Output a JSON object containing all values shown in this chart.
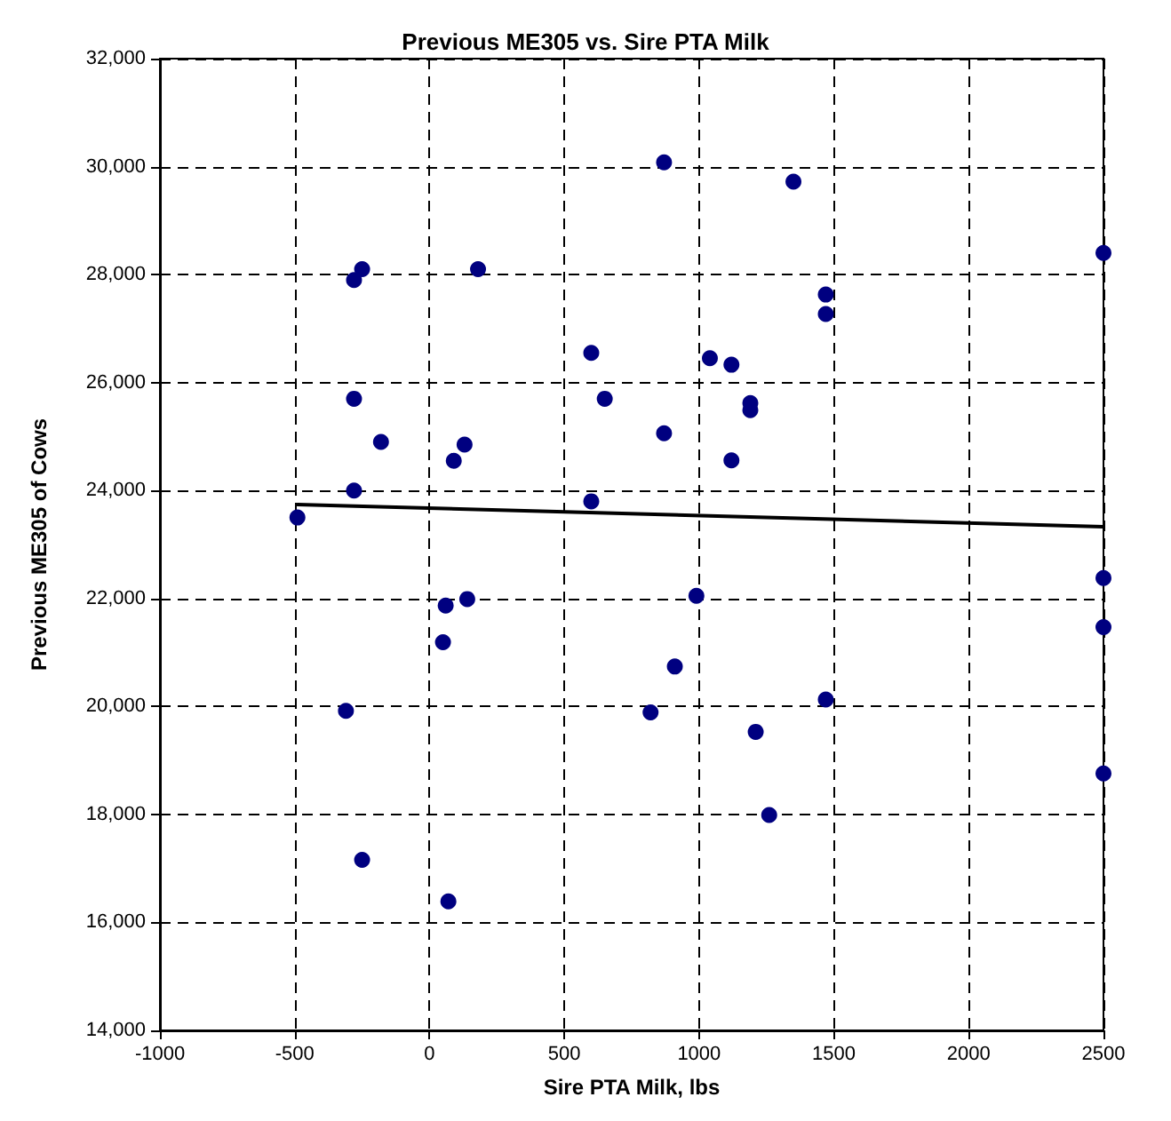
{
  "chart_data": {
    "type": "scatter",
    "title": "Previous ME305 vs. Sire PTA Milk",
    "xlabel": "Sire PTA Milk, lbs",
    "ylabel": "Previous ME305 of Cows",
    "xlim": [
      -1000,
      2500
    ],
    "xticks": [
      -1000,
      -500,
      0,
      500,
      1000,
      1500,
      2000,
      2500
    ],
    "ylim": [
      14000,
      32000
    ],
    "yticks": [
      {
        "value": 14000,
        "label": "14,000"
      },
      {
        "value": 16000,
        "label": "16,000"
      },
      {
        "value": 18000,
        "label": "18,000"
      },
      {
        "value": 20000,
        "label": "20,000"
      },
      {
        "value": 22000,
        "label": "22,000"
      },
      {
        "value": 24000,
        "label": "24,000"
      },
      {
        "value": 26000,
        "label": "26,000"
      },
      {
        "value": 28000,
        "label": "28,000"
      },
      {
        "value": 30000,
        "label": "30,000"
      },
      {
        "value": 32000,
        "label": "32,000"
      }
    ],
    "grid": true,
    "marker": "circle",
    "series": [
      {
        "color": "#000080",
        "x": [
          -490,
          -280,
          -250,
          180,
          600,
          -280,
          -180,
          130,
          90,
          -280,
          600,
          650,
          870,
          1350,
          2500,
          1470,
          1470,
          1040,
          1120,
          1190,
          1190,
          870,
          1120,
          60,
          140,
          50,
          -310,
          -250,
          70,
          990,
          910,
          820,
          1470,
          1210,
          1260,
          2500,
          2500,
          2500
        ],
        "values": [
          23500,
          27900,
          28100,
          28100,
          26550,
          25700,
          24900,
          24850,
          24550,
          24000,
          23800,
          25700,
          30080,
          29720,
          28400,
          27630,
          27270,
          26450,
          26330,
          25620,
          25490,
          25060,
          24560,
          21870,
          21990,
          21190,
          19920,
          17160,
          16390,
          22050,
          20740,
          19890,
          20130,
          19530,
          17990,
          22380,
          21470,
          18760
        ]
      },
      {
        "type": "line",
        "color": "#000000",
        "marker": "none",
        "line_style": "solid",
        "x": [
          -490,
          2500
        ],
        "values": [
          23740,
          23330
        ]
      }
    ]
  }
}
